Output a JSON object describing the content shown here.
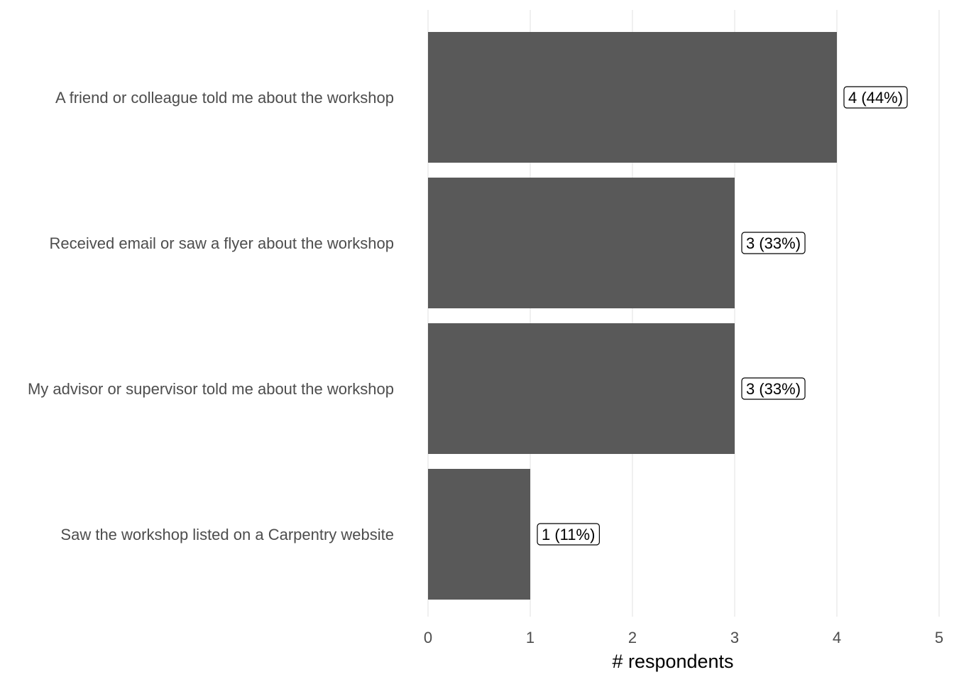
{
  "chart_data": {
    "type": "bar",
    "orientation": "horizontal",
    "categories": [
      "A friend or colleague told me about the workshop",
      "Received email or saw a flyer about the workshop",
      "My advisor or supervisor told me about the workshop",
      "Saw the workshop listed on a Carpentry website"
    ],
    "values": [
      4,
      3,
      3,
      1
    ],
    "data_labels": [
      "4 (44%)",
      "3 (33%)",
      "3 (33%)",
      "1 (11%)"
    ],
    "xlabel": "# respondents",
    "ylabel": "",
    "title": "",
    "xlim": [
      0,
      5
    ],
    "x_ticks": [
      0,
      1,
      2,
      3,
      4,
      5
    ],
    "grid": "vertical",
    "legend": "none",
    "colors": {
      "bar": "#595959",
      "grid": "#ebebeb",
      "tick_text": "#4d4d4d",
      "axis_title": "#000000"
    }
  }
}
